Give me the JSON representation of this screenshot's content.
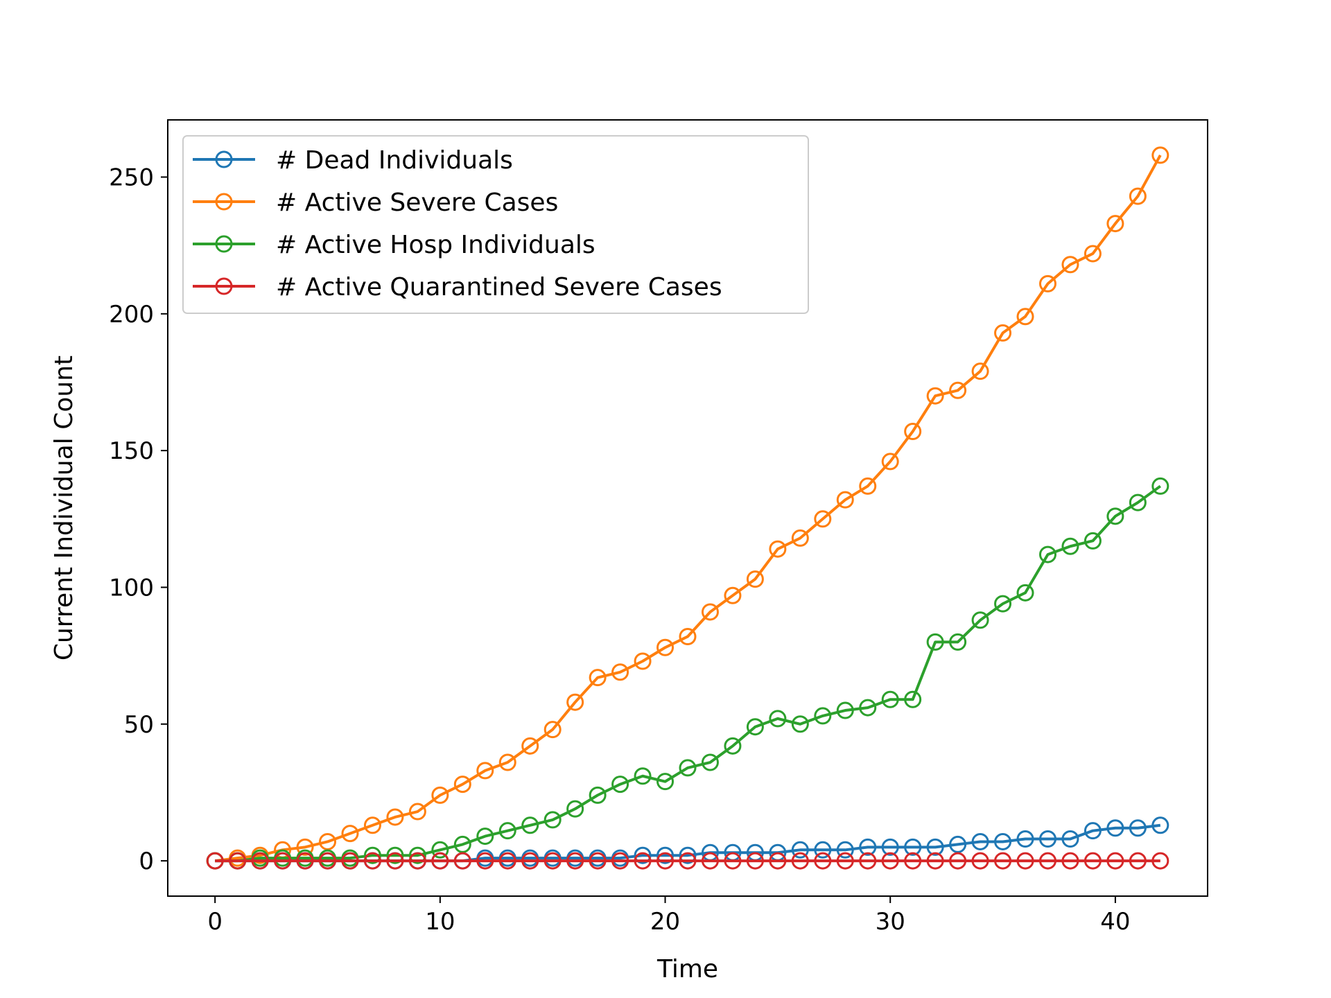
{
  "chart_data": {
    "type": "line",
    "title": "",
    "xlabel": "Time",
    "ylabel": "Current Individual Count",
    "xlim": [
      -2.1,
      44.1
    ],
    "ylim": [
      -12.9,
      270.9
    ],
    "xticks": [
      0,
      10,
      20,
      30,
      40
    ],
    "yticks": [
      0,
      50,
      100,
      150,
      200,
      250
    ],
    "grid": false,
    "legend_position": "upper-left",
    "marker": "open-circle",
    "x": [
      0,
      1,
      2,
      3,
      4,
      5,
      6,
      7,
      8,
      9,
      10,
      11,
      12,
      13,
      14,
      15,
      16,
      17,
      18,
      19,
      20,
      21,
      22,
      23,
      24,
      25,
      26,
      27,
      28,
      29,
      30,
      31,
      32,
      33,
      34,
      35,
      36,
      37,
      38,
      39,
      40,
      41,
      42
    ],
    "series": [
      {
        "name": "# Dead Individuals",
        "color": "#1f77b4",
        "values": [
          0,
          0,
          0,
          0,
          0,
          0,
          0,
          0,
          0,
          0,
          0,
          0,
          1,
          1,
          1,
          1,
          1,
          1,
          1,
          2,
          2,
          2,
          3,
          3,
          3,
          3,
          4,
          4,
          4,
          5,
          5,
          5,
          5,
          6,
          7,
          7,
          8,
          8,
          8,
          11,
          12,
          12,
          13
        ]
      },
      {
        "name": "# Active Severe Cases",
        "color": "#ff7f0e",
        "values": [
          0,
          1,
          2,
          4,
          5,
          7,
          10,
          13,
          16,
          18,
          24,
          28,
          33,
          36,
          42,
          48,
          58,
          67,
          69,
          73,
          78,
          82,
          91,
          97,
          103,
          114,
          118,
          125,
          132,
          137,
          146,
          157,
          170,
          172,
          179,
          193,
          199,
          211,
          218,
          222,
          233,
          243,
          258
        ]
      },
      {
        "name": "# Active Hosp Individuals",
        "color": "#2ca02c",
        "values": [
          0,
          0,
          1,
          1,
          1,
          1,
          1,
          2,
          2,
          2,
          4,
          6,
          9,
          11,
          13,
          15,
          19,
          24,
          28,
          31,
          29,
          34,
          36,
          42,
          49,
          52,
          50,
          53,
          55,
          56,
          59,
          59,
          80,
          80,
          88,
          94,
          98,
          112,
          115,
          117,
          126,
          131,
          137
        ]
      },
      {
        "name": "# Active Quarantined Severe Cases",
        "color": "#d62728",
        "values": [
          0,
          0,
          0,
          0,
          0,
          0,
          0,
          0,
          0,
          0,
          0,
          0,
          0,
          0,
          0,
          0,
          0,
          0,
          0,
          0,
          0,
          0,
          0,
          0,
          0,
          0,
          0,
          0,
          0,
          0,
          0,
          0,
          0,
          0,
          0,
          0,
          0,
          0,
          0,
          0,
          0,
          0,
          0
        ]
      }
    ]
  }
}
